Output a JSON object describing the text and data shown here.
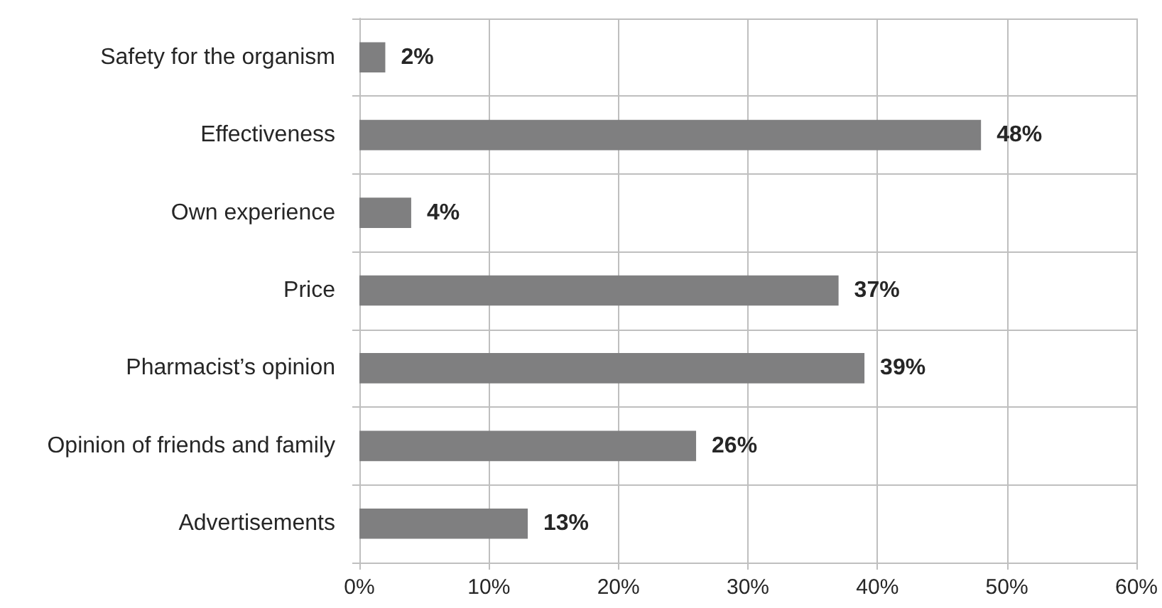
{
  "chart_data": {
    "type": "bar",
    "orientation": "horizontal",
    "categories": [
      "Safety for the organism",
      "Effectiveness",
      "Own experience",
      "Price",
      "Pharmacist’s opinion",
      "Opinion of friends and family",
      "Advertisements"
    ],
    "values": [
      2,
      48,
      4,
      37,
      39,
      26,
      13
    ],
    "value_labels": [
      "2%",
      "48%",
      "4%",
      "37%",
      "39%",
      "26%",
      "13%"
    ],
    "color": "#7f7f80",
    "xlim": [
      0,
      60
    ],
    "xticks": [
      {
        "value": 0,
        "label": "0%"
      },
      {
        "value": 10,
        "label": "10%"
      },
      {
        "value": 20,
        "label": "20%"
      },
      {
        "value": 30,
        "label": "30%"
      },
      {
        "value": 40,
        "label": "40%"
      },
      {
        "value": 50,
        "label": "50%"
      },
      {
        "value": 60,
        "label": "60%"
      }
    ],
    "grid": true
  }
}
